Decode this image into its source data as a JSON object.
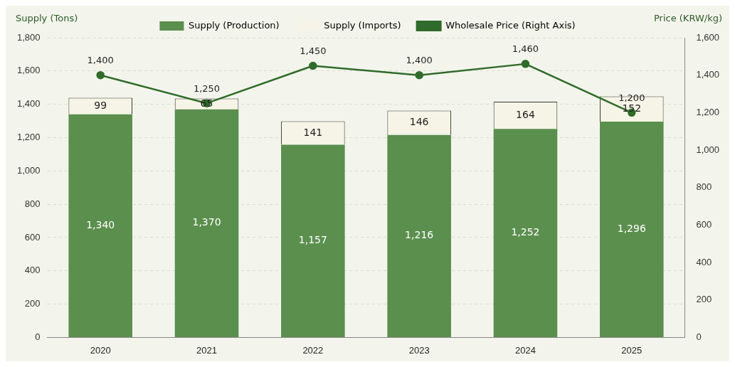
{
  "chart_data": {
    "type": "bar",
    "stacked": true,
    "categories": [
      "2020",
      "2021",
      "2022",
      "2023",
      "2024",
      "2025"
    ],
    "series": [
      {
        "name": "Supply (Production)",
        "color": "#5b8f4e",
        "values": [
          1340,
          1370,
          1157,
          1216,
          1252,
          1296
        ],
        "value_labels": [
          "1,340",
          "1,370",
          "1,157",
          "1,216",
          "1,252",
          "1,296"
        ]
      },
      {
        "name": "Supply (Imports)",
        "color": "#f6f4e6",
        "values": [
          99,
          65,
          141,
          146,
          164,
          152
        ],
        "value_labels": [
          "99",
          "65",
          "141",
          "146",
          "164",
          "152"
        ]
      },
      {
        "name": "Wholesale Price (Right Axis)",
        "type": "line",
        "axis": "y2",
        "color": "#2f6b2a",
        "marker": "circle",
        "values": [
          1400,
          1250,
          1450,
          1400,
          1460,
          1200
        ],
        "value_labels": [
          "1,400",
          "1,250",
          "1,450",
          "1,400",
          "1,460",
          "1,200"
        ]
      }
    ],
    "ylabel": "Supply (Tons)",
    "y2label": "Price (KRW/kg)",
    "ylim": [
      0,
      1800
    ],
    "yticks": [
      0,
      200,
      400,
      600,
      800,
      {
        "value": 1000,
        "label": "1,000"
      },
      {
        "value": 1200,
        "label": "1,200"
      },
      {
        "value": 1400,
        "label": "1,400"
      },
      {
        "value": 1600,
        "label": "1,600"
      },
      {
        "value": 1800,
        "label": "1,800"
      }
    ],
    "y2lim": [
      0,
      1600
    ],
    "y2ticks": [
      0,
      200,
      400,
      600,
      800,
      {
        "value": 1000,
        "label": "1,000"
      },
      {
        "value": 1200,
        "label": "1,200"
      },
      {
        "value": 1400,
        "label": "1,400"
      },
      {
        "value": 1600,
        "label": "1,600"
      }
    ],
    "grid": "y",
    "legend": "top"
  }
}
